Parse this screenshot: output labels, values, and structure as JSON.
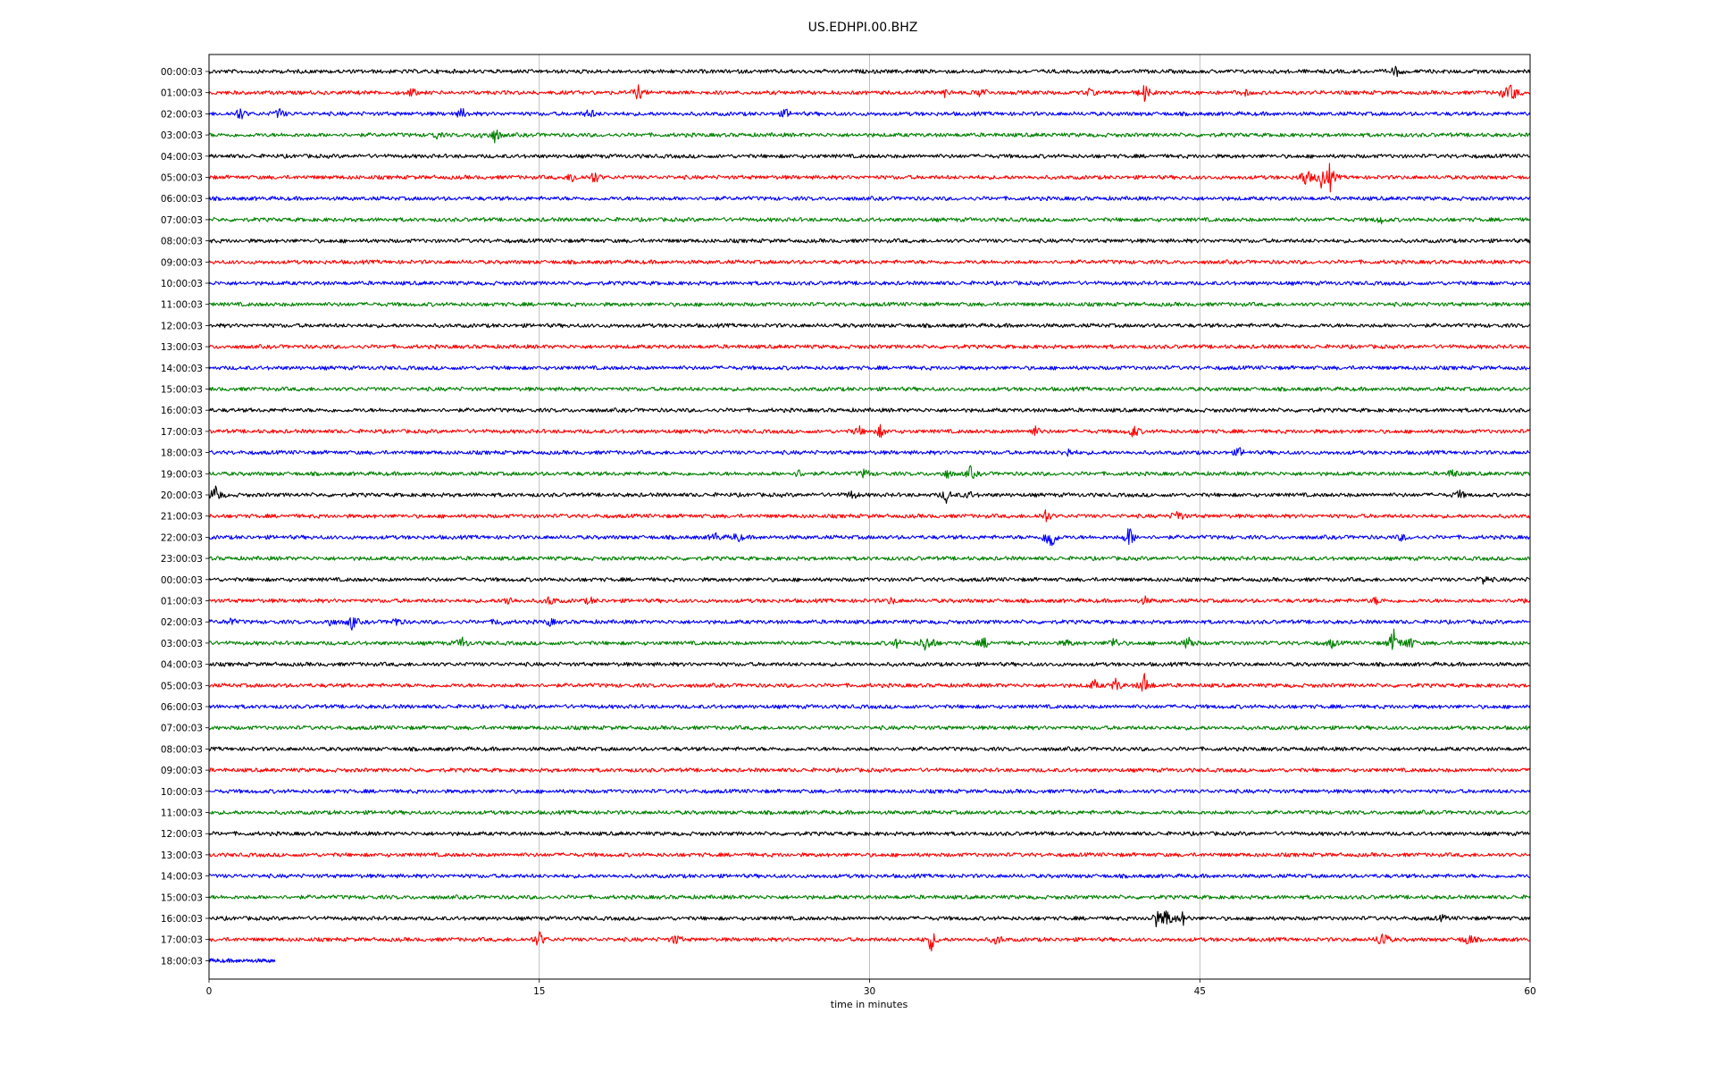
{
  "chart_data": {
    "type": "line",
    "title": "US.EDHPI.00.BHZ",
    "xlabel": "time in minutes",
    "ylabel": "",
    "xlim": [
      0,
      60
    ],
    "x_ticks": [
      "0",
      "15",
      "30",
      "45",
      "60"
    ],
    "x_tick_values": [
      0,
      15,
      30,
      45,
      60
    ],
    "grid": "vertical",
    "colors": [
      "#000000",
      "#ff0000",
      "#0000ff",
      "#008000"
    ],
    "row_labels": [
      "00:00:03",
      "01:00:03",
      "02:00:03",
      "03:00:03",
      "04:00:03",
      "05:00:03",
      "06:00:03",
      "07:00:03",
      "08:00:03",
      "09:00:03",
      "10:00:03",
      "11:00:03",
      "12:00:03",
      "13:00:03",
      "14:00:03",
      "15:00:03",
      "16:00:03",
      "17:00:03",
      "18:00:03",
      "19:00:03",
      "20:00:03",
      "21:00:03",
      "22:00:03",
      "23:00:03",
      "00:00:03",
      "01:00:03",
      "02:00:03",
      "03:00:03",
      "04:00:03",
      "05:00:03",
      "06:00:03",
      "07:00:03",
      "08:00:03",
      "09:00:03",
      "10:00:03",
      "11:00:03",
      "12:00:03",
      "13:00:03",
      "14:00:03",
      "15:00:03",
      "16:00:03",
      "17:00:03",
      "18:00:03"
    ],
    "last_trace_end_minutes": 3,
    "events": [
      {
        "row": 0,
        "at": [
          53.9
        ],
        "amp": [
          0.6
        ]
      },
      {
        "row": 1,
        "at": [
          9.2,
          19.5,
          33.4,
          35.1,
          40,
          42.5,
          47,
          58.8,
          59.2
        ],
        "amp": [
          0.5,
          0.9,
          0.4,
          0.7,
          0.4,
          1.0,
          0.4,
          0.5,
          1.1
        ]
      },
      {
        "row": 2,
        "at": [
          1.4,
          3.2,
          11.5,
          17.3,
          26.2
        ],
        "amp": [
          0.8,
          0.6,
          0.6,
          0.6,
          0.5
        ]
      },
      {
        "row": 3,
        "at": [
          10.3,
          12.3,
          13
        ],
        "amp": [
          0.4,
          0.4,
          0.9
        ]
      },
      {
        "row": 5,
        "at": [
          16.5,
          17.5,
          49.8,
          50.5,
          50.9
        ],
        "amp": [
          0.6,
          0.8,
          1.3,
          1.0,
          1.6
        ]
      },
      {
        "row": 7,
        "at": [
          53.2
        ],
        "amp": [
          0.4
        ]
      },
      {
        "row": 17,
        "at": [
          29.5,
          30.5,
          37.5,
          42
        ],
        "amp": [
          0.6,
          0.7,
          0.6,
          0.8
        ]
      },
      {
        "row": 18,
        "at": [
          39,
          46.8
        ],
        "amp": [
          0.5,
          0.5
        ]
      },
      {
        "row": 19,
        "at": [
          26.8,
          29.8,
          33.5,
          34.6,
          56.5
        ],
        "amp": [
          0.4,
          0.6,
          0.5,
          0.8,
          0.6
        ]
      },
      {
        "row": 20,
        "at": [
          0.3,
          29.2,
          33.5,
          34.5,
          56.8
        ],
        "amp": [
          1.2,
          0.5,
          0.8,
          0.4,
          0.5
        ]
      },
      {
        "row": 21,
        "at": [
          38,
          44
        ],
        "amp": [
          0.8,
          0.8
        ]
      },
      {
        "row": 22,
        "at": [
          23,
          24,
          38.2,
          41.8,
          54.2
        ],
        "amp": [
          0.5,
          0.6,
          2.2,
          1.3,
          0.4
        ]
      },
      {
        "row": 24,
        "at": [
          57.9
        ],
        "amp": [
          0.6
        ]
      },
      {
        "row": 25,
        "at": [
          13.6,
          15.5,
          17.3,
          31,
          42.5,
          53,
          59.5
        ],
        "amp": [
          0.6,
          0.6,
          0.4,
          0.4,
          0.4,
          0.4,
          0.4
        ]
      },
      {
        "row": 26,
        "at": [
          1,
          5.5,
          6.5,
          8.5,
          13.2,
          15.5
        ],
        "amp": [
          0.4,
          0.5,
          0.9,
          0.5,
          0.5,
          0.4
        ]
      },
      {
        "row": 27,
        "at": [
          11.5,
          31.2,
          32.5,
          32.8,
          35.2,
          39,
          41.1,
          44.5,
          51,
          53.8,
          54.5
        ],
        "amp": [
          0.7,
          0.5,
          0.8,
          0.6,
          0.6,
          0.4,
          0.7,
          1.0,
          0.5,
          1.6,
          0.9
        ]
      },
      {
        "row": 29,
        "at": [
          40.2,
          41.2,
          42.5
        ],
        "amp": [
          0.6,
          0.8,
          1.4
        ]
      },
      {
        "row": 40,
        "at": [
          43,
          43.5,
          44.2,
          56
        ],
        "amp": [
          0.9,
          1.4,
          0.8,
          0.3
        ]
      },
      {
        "row": 41,
        "at": [
          15,
          21.2,
          32.8,
          35.8,
          53.3,
          57.2
        ],
        "amp": [
          1.0,
          0.6,
          1.3,
          0.6,
          1.3,
          0.8
        ]
      }
    ]
  }
}
